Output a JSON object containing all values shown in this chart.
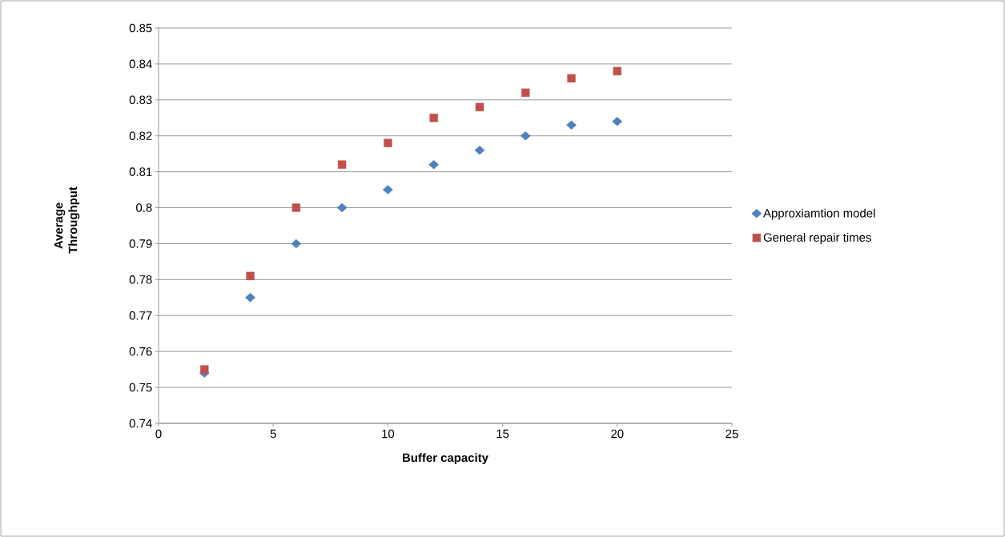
{
  "chart_data": {
    "type": "scatter",
    "xlabel": "Buffer capacity",
    "ylabel": "Average Throughput",
    "x": [
      2,
      4,
      6,
      8,
      10,
      12,
      14,
      16,
      18,
      20
    ],
    "series": [
      {
        "name": "Approxiamtion model",
        "color": "#4f81bd",
        "marker": "diamond",
        "values": [
          0.754,
          0.775,
          0.79,
          0.8,
          0.805,
          0.812,
          0.816,
          0.82,
          0.823,
          0.824
        ]
      },
      {
        "name": "General repair times",
        "color": "#c0504d",
        "marker": "square",
        "values": [
          0.755,
          0.781,
          0.8,
          0.812,
          0.818,
          0.825,
          0.828,
          0.832,
          0.836,
          0.838
        ]
      }
    ],
    "xlim": [
      0,
      25
    ],
    "xticks": [
      0,
      5,
      10,
      15,
      20,
      25
    ],
    "ylim": [
      0.74,
      0.85
    ],
    "yticks": [
      0.74,
      0.75,
      0.76,
      0.77,
      0.78,
      0.79,
      0.8,
      0.81,
      0.82,
      0.83,
      0.84,
      0.85
    ],
    "grid": "y",
    "legend": "right"
  }
}
